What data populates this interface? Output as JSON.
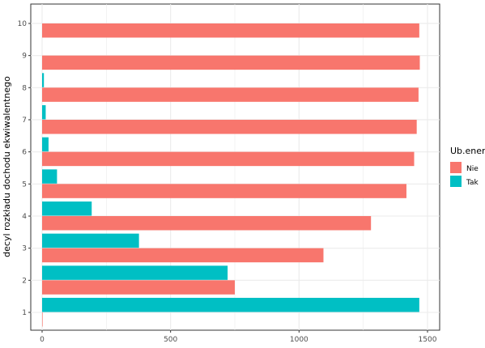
{
  "chart_data": {
    "type": "bar",
    "orientation": "horizontal",
    "layout": "dodged",
    "title": "",
    "xlabel": "",
    "ylabel": "decyl rozkładu dochodu ekwiwalentnego",
    "xlim": [
      0,
      1500
    ],
    "x_ticks": [
      "0",
      "500",
      "1000",
      "1500"
    ],
    "categories": [
      "1",
      "2",
      "3",
      "4",
      "5",
      "6",
      "7",
      "8",
      "9",
      "10"
    ],
    "legend_title": "Ub.energ.",
    "legend_position": "right",
    "grid": true,
    "series": [
      {
        "name": "Nie",
        "color": "#F8766D",
        "values": [
          2,
          750,
          1095,
          1280,
          1418,
          1448,
          1458,
          1465,
          1470,
          1468
        ]
      },
      {
        "name": "Tak",
        "color": "#00BFC4",
        "values": [
          1468,
          722,
          377,
          193,
          58,
          25,
          14,
          7,
          0,
          0
        ]
      }
    ]
  }
}
